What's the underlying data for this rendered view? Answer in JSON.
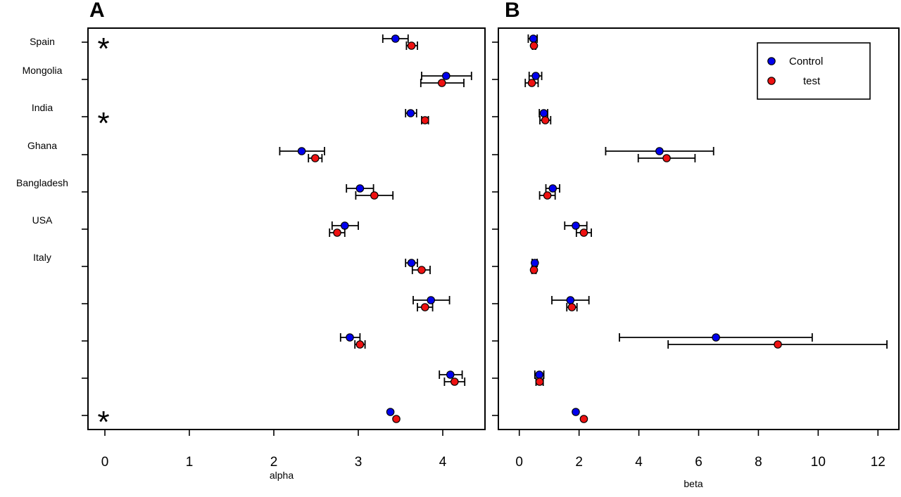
{
  "chart_data": [
    {
      "type": "scatter",
      "panel": "A",
      "xlabel": "alpha",
      "xlim": [
        -0.2,
        4.5
      ],
      "xticks": [
        0,
        1,
        2,
        3,
        4
      ],
      "row_labels": [
        "Spain",
        "Mongolia",
        "India",
        "Ghana",
        "Bangladesh",
        "USA",
        "Italy",
        "",
        "",
        "",
        ""
      ],
      "significant_rows": [
        0,
        2,
        10
      ],
      "series": [
        {
          "name": "Control",
          "color": "#0000ee",
          "points": [
            {
              "value": 3.44,
              "low": 3.29,
              "high": 3.59
            },
            {
              "value": 4.04,
              "low": 3.75,
              "high": 4.34
            },
            {
              "value": 3.62,
              "low": 3.56,
              "high": 3.69
            },
            {
              "value": 2.33,
              "low": 2.07,
              "high": 2.6
            },
            {
              "value": 3.02,
              "low": 2.86,
              "high": 3.18
            },
            {
              "value": 2.84,
              "low": 2.69,
              "high": 3.0
            },
            {
              "value": 3.63,
              "low": 3.56,
              "high": 3.7
            },
            {
              "value": 3.86,
              "low": 3.65,
              "high": 4.08
            },
            {
              "value": 2.9,
              "low": 2.79,
              "high": 3.02
            },
            {
              "value": 4.09,
              "low": 3.96,
              "high": 4.23
            },
            {
              "value": 3.38
            }
          ]
        },
        {
          "name": "test",
          "color": "#ee1111",
          "points": [
            {
              "value": 3.63,
              "low": 3.57,
              "high": 3.7
            },
            {
              "value": 3.99,
              "low": 3.74,
              "high": 4.25
            },
            {
              "value": 3.79,
              "low": 3.75,
              "high": 3.83
            },
            {
              "value": 2.49,
              "low": 2.41,
              "high": 2.57
            },
            {
              "value": 3.19,
              "low": 2.97,
              "high": 3.41
            },
            {
              "value": 2.75,
              "low": 2.66,
              "high": 2.84
            },
            {
              "value": 3.75,
              "low": 3.64,
              "high": 3.85
            },
            {
              "value": 3.79,
              "low": 3.7,
              "high": 3.88
            },
            {
              "value": 3.02,
              "low": 2.96,
              "high": 3.08
            },
            {
              "value": 4.14,
              "low": 4.02,
              "high": 4.26
            },
            {
              "value": 3.45
            }
          ]
        }
      ]
    },
    {
      "type": "scatter",
      "panel": "B",
      "xlabel": "beta",
      "xlim": [
        -0.7,
        12.7
      ],
      "xticks": [
        0,
        2,
        4,
        6,
        8,
        10,
        12
      ],
      "row_labels": [
        "",
        "",
        "",
        "",
        "",
        "",
        "",
        "",
        "",
        "",
        ""
      ],
      "series": [
        {
          "name": "Control",
          "color": "#0000ee",
          "points": [
            {
              "value": 0.47,
              "low": 0.3,
              "high": 0.6
            },
            {
              "value": 0.55,
              "low": 0.33,
              "high": 0.75
            },
            {
              "value": 0.82,
              "low": 0.67,
              "high": 0.95
            },
            {
              "value": 4.69,
              "low": 2.89,
              "high": 6.5
            },
            {
              "value": 1.12,
              "low": 0.89,
              "high": 1.35
            },
            {
              "value": 1.89,
              "low": 1.52,
              "high": 2.26
            },
            {
              "value": 0.52,
              "low": 0.43,
              "high": 0.6
            },
            {
              "value": 1.71,
              "low": 1.09,
              "high": 2.33
            },
            {
              "value": 6.58,
              "low": 3.35,
              "high": 9.8
            },
            {
              "value": 0.67,
              "low": 0.52,
              "high": 0.82
            },
            {
              "value": 1.89
            }
          ]
        },
        {
          "name": "test",
          "color": "#ee1111",
          "points": [
            {
              "value": 0.49,
              "low": 0.44,
              "high": 0.55
            },
            {
              "value": 0.42,
              "low": 0.2,
              "high": 0.63
            },
            {
              "value": 0.87,
              "low": 0.69,
              "high": 1.05
            },
            {
              "value": 4.93,
              "low": 3.98,
              "high": 5.88
            },
            {
              "value": 0.94,
              "low": 0.68,
              "high": 1.2
            },
            {
              "value": 2.16,
              "low": 1.91,
              "high": 2.41
            },
            {
              "value": 0.49,
              "low": 0.42,
              "high": 0.56
            },
            {
              "value": 1.76,
              "low": 1.59,
              "high": 1.93
            },
            {
              "value": 8.65,
              "low": 4.98,
              "high": 12.3
            },
            {
              "value": 0.68,
              "low": 0.56,
              "high": 0.8
            },
            {
              "value": 2.16
            }
          ]
        }
      ]
    }
  ],
  "panel_letters": [
    "A",
    "B"
  ],
  "star_symbol": "*",
  "legend": {
    "placement": "top-right",
    "entries": [
      "Control",
      "test"
    ]
  }
}
